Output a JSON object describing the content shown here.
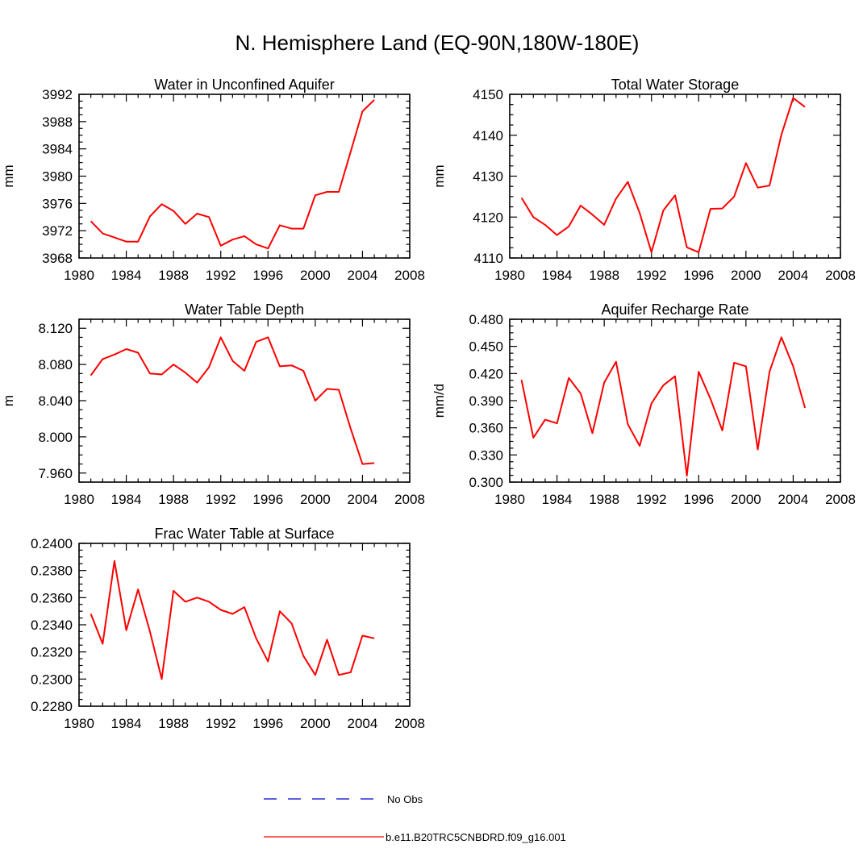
{
  "figure": {
    "title": "N. Hemisphere Land (EQ-90N,180W-180E)",
    "line_color": "#ff0000",
    "obs_color": "#0000cc",
    "legend": [
      {
        "label": "No Obs",
        "style": "dashed",
        "color": "#0000cc"
      },
      {
        "label": "b.e11.B20TRC5CNBDRD.f09_g16.001",
        "style": "solid",
        "color": "#ff0000"
      }
    ]
  },
  "chart_data": [
    {
      "type": "line",
      "title": "Water in Unconfined Aquifer",
      "xlabel": "",
      "ylabel": "mm",
      "xlim": [
        1980,
        2008
      ],
      "ylim": [
        3968,
        3992
      ],
      "x_ticks": [
        1980,
        1984,
        1988,
        1992,
        1996,
        2000,
        2004,
        2008
      ],
      "y_ticks": [
        3968,
        3972,
        3976,
        3980,
        3984,
        3988,
        3992
      ],
      "y_tick_labels": [
        "3968",
        "3972",
        "3976",
        "3980",
        "3984",
        "3988",
        "3992"
      ],
      "x": [
        1981,
        1982,
        1983,
        1984,
        1985,
        1986,
        1987,
        1988,
        1989,
        1990,
        1991,
        1992,
        1993,
        1994,
        1995,
        1996,
        1997,
        1998,
        1999,
        2000,
        2001,
        2002,
        2003,
        2004,
        2005
      ],
      "series": [
        {
          "name": "b.e11.B20TRC5CNBDRD.f09_g16.001",
          "values": [
            3973.4,
            3971.6,
            3971.0,
            3970.4,
            3970.4,
            3974.1,
            3975.9,
            3974.9,
            3973.0,
            3974.5,
            3974.0,
            3969.8,
            3970.7,
            3971.2,
            3970.0,
            3969.4,
            3972.8,
            3972.3,
            3972.3,
            3977.2,
            3977.7,
            3977.7,
            3983.6,
            3989.5,
            3991.2
          ]
        }
      ]
    },
    {
      "type": "line",
      "title": "Total Water Storage",
      "xlabel": "",
      "ylabel": "mm",
      "xlim": [
        1980,
        2008
      ],
      "ylim": [
        4110,
        4150
      ],
      "x_ticks": [
        1980,
        1984,
        1988,
        1992,
        1996,
        2000,
        2004,
        2008
      ],
      "y_ticks": [
        4110,
        4120,
        4130,
        4140,
        4150
      ],
      "y_tick_labels": [
        "4110",
        "4120",
        "4130",
        "4140",
        "4150"
      ],
      "x": [
        1981,
        1982,
        1983,
        1984,
        1985,
        1986,
        1987,
        1988,
        1989,
        1990,
        1991,
        1992,
        1993,
        1994,
        1995,
        1996,
        1997,
        1998,
        1999,
        2000,
        2001,
        2002,
        2003,
        2004,
        2005
      ],
      "series": [
        {
          "name": "b.e11.B20TRC5CNBDRD.f09_g16.001",
          "values": [
            4124.7,
            4120.0,
            4118.1,
            4115.6,
            4117.7,
            4122.8,
            4120.6,
            4118.1,
            4124.5,
            4128.6,
            4121.0,
            4111.4,
            4121.6,
            4125.3,
            4112.6,
            4111.4,
            4122.0,
            4122.1,
            4125.0,
            4133.2,
            4127.2,
            4127.7,
            4140.1,
            4149.1,
            4146.9
          ]
        }
      ]
    },
    {
      "type": "line",
      "title": "Water Table Depth",
      "xlabel": "",
      "ylabel": "m",
      "xlim": [
        1980,
        2008
      ],
      "ylim": [
        7.95,
        8.13
      ],
      "x_ticks": [
        1980,
        1984,
        1988,
        1992,
        1996,
        2000,
        2004,
        2008
      ],
      "y_ticks": [
        7.96,
        8.0,
        8.04,
        8.08,
        8.12
      ],
      "y_tick_labels": [
        "7.960",
        "8.000",
        "8.040",
        "8.080",
        "8.120"
      ],
      "x": [
        1981,
        1982,
        1983,
        1984,
        1985,
        1986,
        1987,
        1988,
        1989,
        1990,
        1991,
        1992,
        1993,
        1994,
        1995,
        1996,
        1997,
        1998,
        1999,
        2000,
        2001,
        2002,
        2003,
        2004,
        2005
      ],
      "series": [
        {
          "name": "b.e11.B20TRC5CNBDRD.f09_g16.001",
          "values": [
            8.068,
            8.086,
            8.091,
            8.097,
            8.093,
            8.07,
            8.069,
            8.08,
            8.071,
            8.06,
            8.077,
            8.11,
            8.084,
            8.073,
            8.105,
            8.11,
            8.078,
            8.079,
            8.073,
            8.04,
            8.053,
            8.052,
            8.009,
            7.97,
            7.971
          ]
        }
      ]
    },
    {
      "type": "line",
      "title": "Aquifer Recharge Rate",
      "xlabel": "",
      "ylabel": "mm/d",
      "xlim": [
        1980,
        2008
      ],
      "ylim": [
        0.3,
        0.48
      ],
      "x_ticks": [
        1980,
        1984,
        1988,
        1992,
        1996,
        2000,
        2004,
        2008
      ],
      "y_ticks": [
        0.3,
        0.33,
        0.36,
        0.39,
        0.42,
        0.45,
        0.48
      ],
      "y_tick_labels": [
        "0.300",
        "0.330",
        "0.360",
        "0.390",
        "0.420",
        "0.450",
        "0.480"
      ],
      "x": [
        1981,
        1982,
        1983,
        1984,
        1985,
        1986,
        1987,
        1988,
        1989,
        1990,
        1991,
        1992,
        1993,
        1994,
        1995,
        1996,
        1997,
        1998,
        1999,
        2000,
        2001,
        2002,
        2003,
        2004,
        2005
      ],
      "series": [
        {
          "name": "b.e11.B20TRC5CNBDRD.f09_g16.001",
          "values": [
            0.413,
            0.349,
            0.369,
            0.365,
            0.415,
            0.398,
            0.354,
            0.41,
            0.433,
            0.364,
            0.34,
            0.387,
            0.407,
            0.417,
            0.307,
            0.422,
            0.392,
            0.357,
            0.432,
            0.428,
            0.336,
            0.422,
            0.46,
            0.428,
            0.382
          ]
        }
      ]
    },
    {
      "type": "line",
      "title": "Frac Water Table at Surface",
      "xlabel": "",
      "ylabel": "",
      "xlim": [
        1980,
        2008
      ],
      "ylim": [
        0.228,
        0.24
      ],
      "x_ticks": [
        1980,
        1984,
        1988,
        1992,
        1996,
        2000,
        2004,
        2008
      ],
      "y_ticks": [
        0.228,
        0.23,
        0.232,
        0.234,
        0.236,
        0.238,
        0.24
      ],
      "y_tick_labels": [
        "0.2280",
        "0.2300",
        "0.2320",
        "0.2340",
        "0.2360",
        "0.2380",
        "0.2400"
      ],
      "x": [
        1981,
        1982,
        1983,
        1984,
        1985,
        1986,
        1987,
        1988,
        1989,
        1990,
        1991,
        1992,
        1993,
        1994,
        1995,
        1996,
        1997,
        1998,
        1999,
        2000,
        2001,
        2002,
        2003,
        2004,
        2005
      ],
      "series": [
        {
          "name": "b.e11.B20TRC5CNBDRD.f09_g16.001",
          "values": [
            0.2348,
            0.2326,
            0.2387,
            0.2336,
            0.2366,
            0.2335,
            0.23,
            0.2365,
            0.2357,
            0.236,
            0.2357,
            0.2351,
            0.2348,
            0.2353,
            0.233,
            0.2313,
            0.235,
            0.2341,
            0.2317,
            0.2303,
            0.2329,
            0.2303,
            0.2305,
            0.2332,
            0.233
          ]
        }
      ]
    }
  ]
}
